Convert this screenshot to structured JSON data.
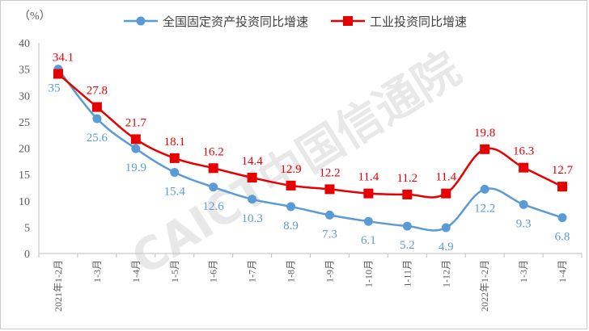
{
  "chart_data": {
    "type": "line",
    "title": "",
    "unit_label": "（%）",
    "xlabel": "",
    "ylabel": "",
    "ylim": [
      0,
      40
    ],
    "yticks": [
      0,
      5,
      10,
      15,
      20,
      25,
      30,
      35,
      40
    ],
    "grid": false,
    "legend_position": "top",
    "categories": [
      "2021年1-2月",
      "1-3月",
      "1-4月",
      "1-5月",
      "1-6月",
      "1-7月",
      "1-8月",
      "1-9月",
      "1-10月",
      "1-11月",
      "1-12月",
      "2022年1-2月",
      "1-3月",
      "1-4月"
    ],
    "series": [
      {
        "name": "全国固定资产投资同比增速",
        "color": "#5b9bd5",
        "marker": "circle",
        "values": [
          35,
          25.6,
          19.9,
          15.4,
          12.6,
          10.3,
          8.9,
          7.3,
          6.1,
          5.2,
          4.9,
          12.2,
          9.3,
          6.8
        ],
        "labels": [
          "35",
          "25.6",
          "19.9",
          "15.4",
          "12.6",
          "10.3",
          "8.9",
          "7.3",
          "6.1",
          "5.2",
          "4.9",
          "12.2",
          "9.3",
          "6.8"
        ]
      },
      {
        "name": "工业投资同比增速",
        "color": "#e60000",
        "marker": "square",
        "values": [
          34.1,
          27.8,
          21.7,
          18.1,
          16.2,
          14.4,
          12.9,
          12.2,
          11.4,
          11.2,
          11.4,
          19.8,
          16.3,
          12.7
        ],
        "labels": [
          "34.1",
          "27.8",
          "21.7",
          "18.1",
          "16.2",
          "14.4",
          "12.9",
          "12.2",
          "11.4",
          "11.2",
          "11.4",
          "19.8",
          "16.3",
          "12.7"
        ]
      }
    ]
  },
  "watermark": {
    "text": "CAICT中国信通院",
    "color": "#e6e6e6"
  }
}
